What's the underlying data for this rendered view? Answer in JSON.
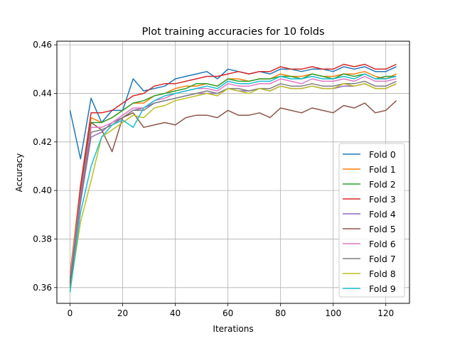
{
  "chart_data": {
    "type": "line",
    "title": "Plot training accuracies for 10 folds",
    "xlabel": "Iterations",
    "ylabel": "Accuracy",
    "xlim": [
      -5,
      129
    ],
    "ylim": [
      0.3535,
      0.4615
    ],
    "xticks": [
      0,
      20,
      40,
      60,
      80,
      100,
      120
    ],
    "yticks": [
      0.36,
      0.38,
      0.4,
      0.42,
      0.44,
      0.46
    ],
    "ytick_labels": [
      "0.36",
      "0.38",
      "0.40",
      "0.42",
      "0.44",
      "0.46"
    ],
    "grid": true,
    "legend_position": "lower-right",
    "x": [
      0,
      4,
      8,
      12,
      16,
      20,
      24,
      28,
      32,
      36,
      40,
      44,
      48,
      52,
      56,
      60,
      64,
      68,
      72,
      76,
      80,
      84,
      88,
      92,
      96,
      100,
      104,
      108,
      112,
      116,
      120,
      124
    ],
    "series": [
      {
        "name": "Fold 0",
        "color": "#1f77b4",
        "values": [
          0.433,
          0.413,
          0.438,
          0.428,
          0.433,
          0.433,
          0.446,
          0.441,
          0.442,
          0.443,
          0.446,
          0.447,
          0.448,
          0.449,
          0.446,
          0.45,
          0.449,
          0.448,
          0.449,
          0.448,
          0.45,
          0.45,
          0.449,
          0.45,
          0.45,
          0.449,
          0.451,
          0.45,
          0.451,
          0.449,
          0.449,
          0.451
        ]
      },
      {
        "name": "Fold 1",
        "color": "#ff7f0e",
        "values": [
          0.366,
          0.402,
          0.43,
          0.428,
          0.43,
          0.433,
          0.436,
          0.436,
          0.439,
          0.44,
          0.442,
          0.443,
          0.443,
          0.444,
          0.443,
          0.446,
          0.446,
          0.445,
          0.446,
          0.446,
          0.448,
          0.447,
          0.447,
          0.448,
          0.447,
          0.447,
          0.448,
          0.448,
          0.449,
          0.447,
          0.446,
          0.448
        ]
      },
      {
        "name": "Fold 2",
        "color": "#2ca02c",
        "values": [
          0.364,
          0.4,
          0.428,
          0.428,
          0.43,
          0.433,
          0.436,
          0.437,
          0.439,
          0.44,
          0.441,
          0.442,
          0.444,
          0.444,
          0.443,
          0.446,
          0.445,
          0.445,
          0.446,
          0.446,
          0.447,
          0.447,
          0.446,
          0.448,
          0.447,
          0.446,
          0.448,
          0.447,
          0.448,
          0.446,
          0.447,
          0.447
        ]
      },
      {
        "name": "Fold 3",
        "color": "#d62728",
        "values": [
          0.362,
          0.402,
          0.432,
          0.432,
          0.433,
          0.436,
          0.439,
          0.44,
          0.443,
          0.444,
          0.444,
          0.445,
          0.446,
          0.447,
          0.447,
          0.448,
          0.449,
          0.448,
          0.449,
          0.449,
          0.451,
          0.45,
          0.45,
          0.451,
          0.45,
          0.45,
          0.452,
          0.451,
          0.452,
          0.45,
          0.45,
          0.452
        ]
      },
      {
        "name": "Fold 4",
        "color": "#9467bd",
        "values": [
          0.361,
          0.395,
          0.422,
          0.424,
          0.428,
          0.43,
          0.433,
          0.434,
          0.436,
          0.437,
          0.438,
          0.439,
          0.44,
          0.44,
          0.44,
          0.442,
          0.441,
          0.441,
          0.442,
          0.441,
          0.443,
          0.442,
          0.442,
          0.443,
          0.442,
          0.442,
          0.443,
          0.443,
          0.444,
          0.442,
          0.442,
          0.444
        ]
      },
      {
        "name": "Fold 5",
        "color": "#8c564b",
        "values": [
          0.36,
          0.399,
          0.428,
          0.425,
          0.416,
          0.43,
          0.432,
          0.426,
          0.427,
          0.428,
          0.427,
          0.43,
          0.431,
          0.431,
          0.43,
          0.433,
          0.431,
          0.431,
          0.432,
          0.43,
          0.434,
          0.433,
          0.432,
          0.434,
          0.433,
          0.432,
          0.435,
          0.434,
          0.436,
          0.432,
          0.433,
          0.437
        ]
      },
      {
        "name": "Fold 6",
        "color": "#e377c2",
        "values": [
          0.365,
          0.398,
          0.426,
          0.426,
          0.428,
          0.431,
          0.434,
          0.434,
          0.437,
          0.438,
          0.44,
          0.441,
          0.442,
          0.442,
          0.441,
          0.444,
          0.443,
          0.443,
          0.444,
          0.444,
          0.446,
          0.445,
          0.444,
          0.446,
          0.445,
          0.445,
          0.446,
          0.445,
          0.447,
          0.445,
          0.445,
          0.446
        ]
      },
      {
        "name": "Fold 7",
        "color": "#7f7f7f",
        "values": [
          0.363,
          0.397,
          0.424,
          0.425,
          0.427,
          0.43,
          0.433,
          0.433,
          0.436,
          0.437,
          0.438,
          0.439,
          0.44,
          0.441,
          0.44,
          0.442,
          0.442,
          0.441,
          0.442,
          0.442,
          0.444,
          0.443,
          0.443,
          0.444,
          0.443,
          0.443,
          0.444,
          0.444,
          0.445,
          0.443,
          0.443,
          0.445
        ]
      },
      {
        "name": "Fold 8",
        "color": "#bcbd22",
        "values": [
          0.359,
          0.387,
          0.404,
          0.422,
          0.425,
          0.428,
          0.431,
          0.43,
          0.434,
          0.435,
          0.437,
          0.438,
          0.439,
          0.44,
          0.439,
          0.442,
          0.441,
          0.44,
          0.442,
          0.441,
          0.443,
          0.442,
          0.442,
          0.443,
          0.442,
          0.442,
          0.444,
          0.443,
          0.444,
          0.442,
          0.442,
          0.444
        ]
      },
      {
        "name": "Fold 9",
        "color": "#17becf",
        "values": [
          0.358,
          0.391,
          0.41,
          0.422,
          0.427,
          0.429,
          0.426,
          0.434,
          0.437,
          0.439,
          0.44,
          0.441,
          0.442,
          0.443,
          0.442,
          0.445,
          0.444,
          0.444,
          0.445,
          0.445,
          0.447,
          0.446,
          0.446,
          0.447,
          0.446,
          0.446,
          0.447,
          0.446,
          0.448,
          0.446,
          0.446,
          0.447
        ]
      }
    ]
  }
}
